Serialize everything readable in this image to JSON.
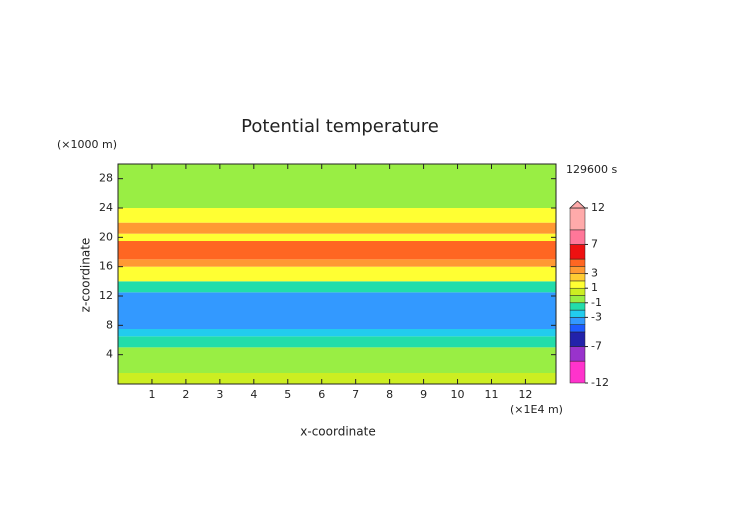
{
  "chart_data": {
    "type": "contour",
    "title": "Potential temperature",
    "xlabel": "x-coordinate",
    "ylabel": "z-coordinate",
    "x_unit_label": "(×1E4 m)",
    "y_unit_label": "(×1000 m)",
    "time_label": "129600 s",
    "xlim": [
      0,
      12.9
    ],
    "xticks": [
      1,
      2,
      3,
      4,
      5,
      6,
      7,
      8,
      9,
      10,
      11,
      12
    ],
    "ylim": [
      0,
      30
    ],
    "yticks": [
      4,
      8,
      12,
      16,
      20,
      24,
      28
    ],
    "colorbar": {
      "levels": [
        -12,
        -9,
        -7,
        -5,
        -4,
        -3,
        -2,
        -1,
        0,
        1,
        2,
        3,
        4,
        5,
        7,
        9,
        12
      ],
      "colors": [
        "#ff33cc",
        "#9933cc",
        "#2222aa",
        "#1e5cff",
        "#3399ff",
        "#22ccee",
        "#22ddaa",
        "#99ee44",
        "#ccee22",
        "#ffff33",
        "#ffcc33",
        "#ff9933",
        "#ff6622",
        "#ee1111",
        "#ff7799",
        "#ffaaaa"
      ],
      "ticks": [
        12,
        7,
        3,
        1,
        -1,
        -3,
        -7,
        -12
      ]
    },
    "field": {
      "z": [
        0,
        1.5,
        5,
        6.5,
        7.5,
        12.5,
        14,
        16,
        17,
        19.5,
        20.5,
        22,
        24,
        30
      ],
      "values": [
        0.5,
        -0.5,
        -1.5,
        -2.5,
        -3.5,
        -1.5,
        1.5,
        3.5,
        4.5,
        1.5,
        3.5,
        1.5,
        -0.5
      ]
    }
  }
}
